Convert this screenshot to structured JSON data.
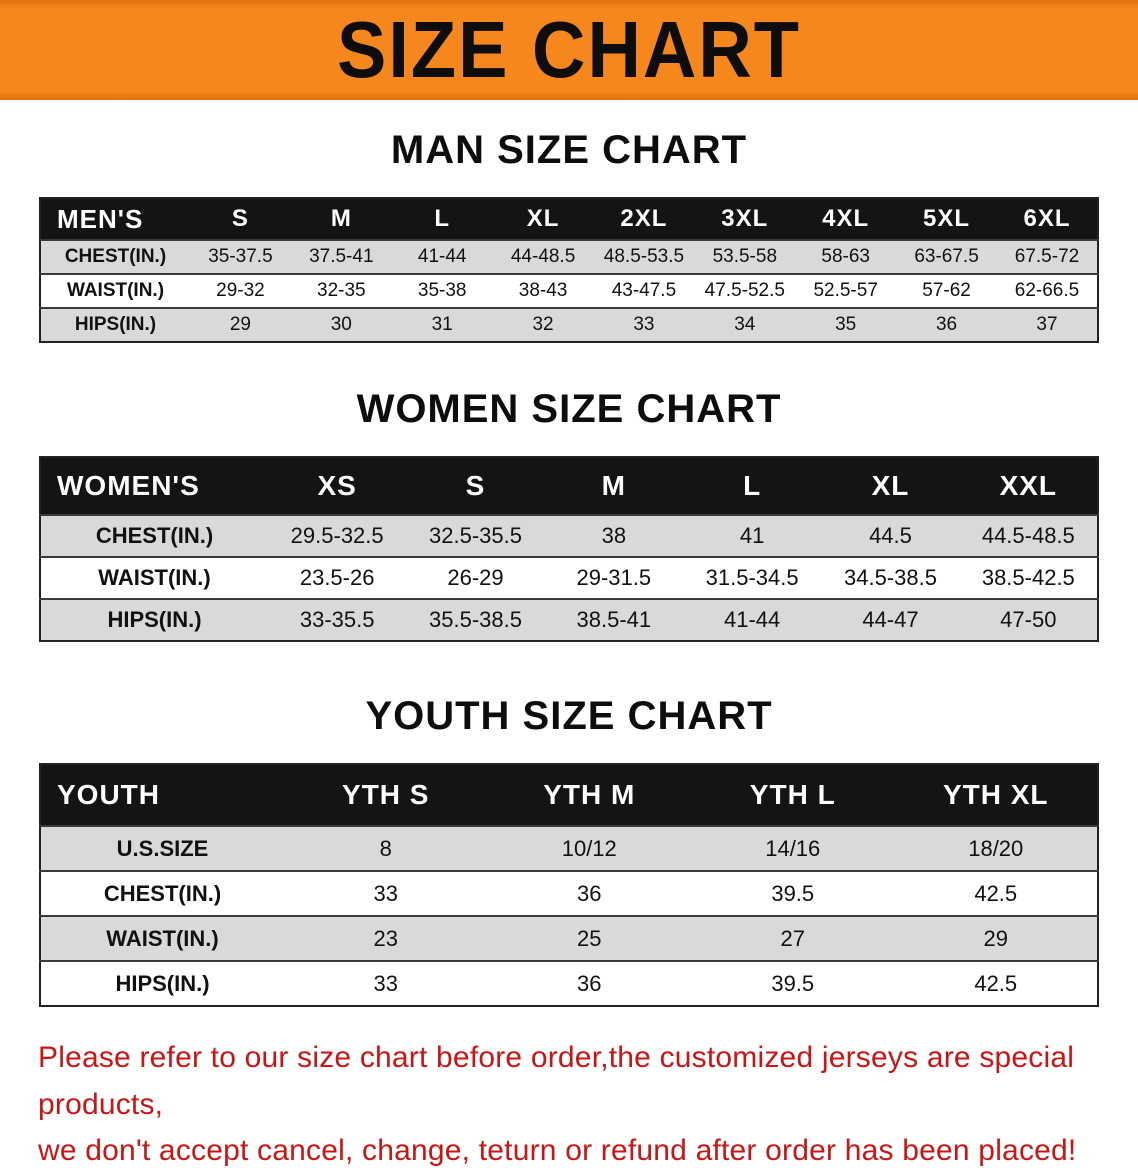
{
  "banner": {
    "title": "SIZE CHART"
  },
  "colors": {
    "banner_orange": "#f6871c",
    "header_black": "#141414",
    "row_gray": "#d9d9d9",
    "warning_red": "#cc1414"
  },
  "sections": [
    {
      "heading": "MAN SIZE CHART",
      "table": {
        "header": [
          "MEN'S",
          "S",
          "M",
          "L",
          "XL",
          "2XL",
          "3XL",
          "4XL",
          "5XL",
          "6XL"
        ],
        "rows": [
          {
            "label": "CHEST(IN.)",
            "values": [
              "35-37.5",
              "37.5-41",
              "41-44",
              "44-48.5",
              "48.5-53.5",
              "53.5-58",
              "58-63",
              "63-67.5",
              "67.5-72"
            ]
          },
          {
            "label": "WAIST(IN.)",
            "values": [
              "29-32",
              "32-35",
              "35-38",
              "38-43",
              "43-47.5",
              "47.5-52.5",
              "52.5-57",
              "57-62",
              "62-66.5"
            ]
          },
          {
            "label": "HIPS(IN.)",
            "values": [
              "29",
              "30",
              "31",
              "32",
              "33",
              "34",
              "35",
              "36",
              "37"
            ]
          }
        ]
      }
    },
    {
      "heading": "WOMEN SIZE CHART",
      "table": {
        "header": [
          "WOMEN'S",
          "XS",
          "S",
          "M",
          "L",
          "XL",
          "XXL"
        ],
        "rows": [
          {
            "label": "CHEST(IN.)",
            "values": [
              "29.5-32.5",
              "32.5-35.5",
              "38",
              "41",
              "44.5",
              "44.5-48.5"
            ]
          },
          {
            "label": "WAIST(IN.)",
            "values": [
              "23.5-26",
              "26-29",
              "29-31.5",
              "31.5-34.5",
              "34.5-38.5",
              "38.5-42.5"
            ]
          },
          {
            "label": "HIPS(IN.)",
            "values": [
              "33-35.5",
              "35.5-38.5",
              "38.5-41",
              "41-44",
              "44-47",
              "47-50"
            ]
          }
        ]
      }
    },
    {
      "heading": "YOUTH SIZE CHART",
      "table": {
        "header": [
          "YOUTH",
          "YTH S",
          "YTH M",
          "YTH L",
          "YTH XL"
        ],
        "rows": [
          {
            "label": "U.S.SIZE",
            "values": [
              "8",
              "10/12",
              "14/16",
              "18/20"
            ]
          },
          {
            "label": "CHEST(IN.)",
            "values": [
              "33",
              "36",
              "39.5",
              "42.5"
            ]
          },
          {
            "label": "WAIST(IN.)",
            "values": [
              "23",
              "25",
              "27",
              "29"
            ]
          },
          {
            "label": "HIPS(IN.)",
            "values": [
              "33",
              "36",
              "39.5",
              "42.5"
            ]
          }
        ]
      }
    }
  ],
  "footer": {
    "line1": "Please refer to our size chart before order,the customized jerseys are special products,",
    "line2": "we don't accept cancel, change, teturn or refund after order has been placed!"
  }
}
